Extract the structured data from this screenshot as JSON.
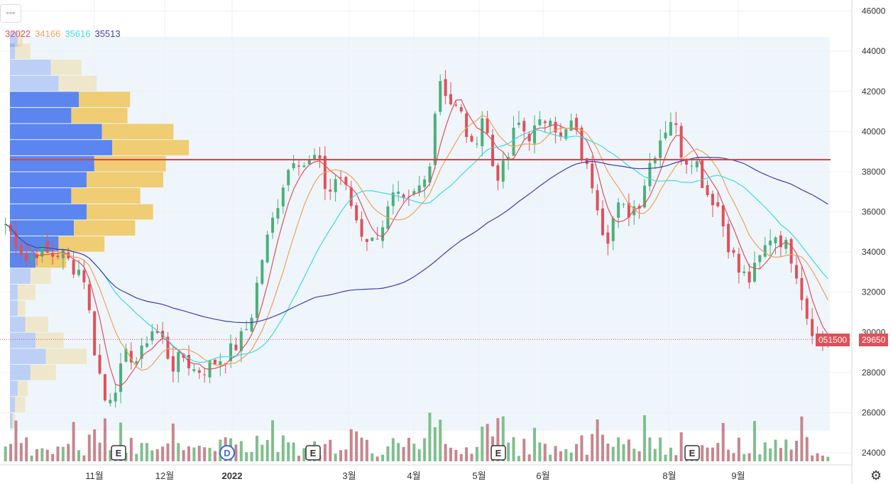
{
  "menu": {
    "icon": "more-dots-icon",
    "label": "◦◦◦"
  },
  "legend": [
    {
      "value": "32022",
      "color": "#e0505a"
    },
    {
      "value": "34166",
      "color": "#f2a05a"
    },
    {
      "value": "35616",
      "color": "#3fd9e0"
    },
    {
      "value": "35513",
      "color": "#3b3fa8"
    }
  ],
  "price_tags": {
    "left": "051500",
    "right": "29650"
  },
  "settings_icon": "gear-icon",
  "colors": {
    "up": "#4caf7a",
    "down": "#e0505a",
    "level": "#e0404a",
    "profile_blue": "#5b86f0",
    "profile_gold": "#f0cc72"
  },
  "chart_data": {
    "type": "candlestick",
    "yaxis": {
      "ticks": [
        24000,
        26000,
        28000,
        30000,
        32000,
        34000,
        36000,
        38000,
        40000,
        42000,
        44000,
        46000
      ],
      "ylim": [
        23400,
        46200
      ]
    },
    "xaxis": {
      "ticks": [
        "11월",
        "12월",
        "2022",
        "3월",
        "4월",
        "5월",
        "6월",
        "8월",
        "9월"
      ]
    },
    "horizontal_line": 38600,
    "last_price": 29650,
    "event_markers": [
      {
        "label": "E",
        "x_tick_near": "11월"
      },
      {
        "label": "D",
        "x_tick_near": "2022"
      },
      {
        "label": "E",
        "x_tick_near": "3월"
      },
      {
        "label": "E",
        "x_tick_near": "5월"
      },
      {
        "label": "E",
        "x_tick_near": "8월"
      }
    ],
    "close_path": [
      35400,
      34500,
      33500,
      34200,
      33800,
      34000,
      33300,
      33000,
      29200,
      26500,
      27500,
      29000,
      28500,
      30200,
      29800,
      28300,
      28800,
      28100,
      28200,
      28600,
      28900,
      29500,
      30500,
      33500,
      35500,
      37500,
      38900,
      38300,
      38800,
      36800,
      38000,
      36500,
      35000,
      34500,
      35500,
      36800,
      36200,
      37000,
      37800,
      42800,
      41500,
      40800,
      39000,
      41000,
      37800,
      38200,
      40500,
      39800,
      40200,
      41000,
      39500,
      40500,
      38500,
      37200,
      34500,
      36200,
      36000,
      36500,
      38500,
      39800,
      40800,
      38600,
      38800,
      37000,
      36500,
      34500,
      33000,
      32600,
      33800,
      35000,
      34500,
      33500,
      31000,
      29700,
      29650
    ],
    "series": [
      {
        "name": "32022",
        "last": 32022
      },
      {
        "name": "34166",
        "last": 34166
      },
      {
        "name": "35616",
        "last": 35616
      },
      {
        "name": "35513",
        "last": 35513
      }
    ],
    "volume_profile": {
      "price_bins": [
        44600,
        44000,
        43200,
        42400,
        41600,
        40800,
        40000,
        39200,
        38400,
        37600,
        36800,
        36000,
        35200,
        34400,
        33600,
        32800,
        32000,
        31200,
        30400,
        29600,
        28800,
        28000,
        27200,
        26400,
        25600
      ],
      "up_volume": [
        3,
        2,
        16,
        19,
        27,
        24,
        36,
        40,
        33,
        30,
        24,
        30,
        25,
        19,
        10,
        8,
        3,
        3,
        6,
        10,
        14,
        8,
        3,
        2,
        1
      ],
      "down_volume": [
        2,
        6,
        12,
        15,
        20,
        22,
        28,
        30,
        28,
        30,
        27,
        26,
        24,
        18,
        12,
        8,
        7,
        3,
        9,
        11,
        16,
        10,
        4,
        4,
        1
      ]
    }
  }
}
